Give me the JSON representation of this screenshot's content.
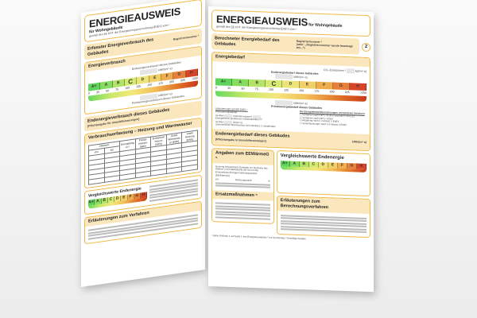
{
  "common": {
    "title": "ENERGIEAUSWEIS",
    "title_suffix": "für Wohngebäude",
    "legal": "gemäß den §§ 16 ff. der Energieeinsparverordnung (EnEV) vom ¹",
    "reg_label": "Registriernummer ²",
    "reg_note": "(oder: „Registriernummer wurde beantragt am...“)",
    "unit": "kWh/(m²·a)",
    "classes": [
      "A+",
      "A",
      "B",
      "C",
      "D",
      "E",
      "F",
      "G",
      "H"
    ],
    "ticks": [
      "0",
      "25",
      "50",
      "75",
      "100",
      "125",
      "150",
      "175",
      "200",
      "225",
      ">250"
    ],
    "current_class": "C",
    "class_colors": [
      "#5fd35a",
      "#86dc5e",
      "#b4e467",
      "#d4ea70",
      "#ece478",
      "#f2d068",
      "#f0ad4e",
      "#e7803a",
      "#d6452a"
    ]
  },
  "left": {
    "header": "Erfasster Energieverbrauch des Gebäudes",
    "section": "Energieverbrauch",
    "end_label": "Endenergieverbrauch dieses Gebäudes",
    "primary_label": "Primärenergieverbrauch dieses Gebäudes",
    "summary_title": "Endenergieverbrauch dieses Gebäudes",
    "summary_note": "[Pflichtangabe für Immobilienanzeigen]",
    "table_title": "Verbrauchserfassung – Heizung und Warmwasser",
    "table_headers": [
      "Zeitraum",
      "Energieträger ³",
      "Primär-energie-faktor",
      "Energieverbrauch [kWh]",
      "Anteil Warmwasser [kWh]",
      "Anteil Heizung [kWh]"
    ],
    "period_sub": [
      "von",
      "bis"
    ],
    "compare_title": "Vergleichswerte Endenergie",
    "expl_title": "Erläuterungen zum Verfahren"
  },
  "right": {
    "header": "Berechneter Energiebedarf des Gebäudes",
    "page_number": "2",
    "section": "Energiebedarf",
    "co2_label": "CO₂-Emissionen ³",
    "co2_unit": "kg/(m²·a)",
    "end_label": "Endenergiebedarf dieses Gebäudes",
    "primary_label": "Primärenergiebedarf dieses Gebäudes",
    "req_title": "Anforderungen gemäß EnEV ⁴",
    "req_primary": "Primärenergiebedarf",
    "ist": "Ist-Wert",
    "soll": "Anforderungswert",
    "hull": "Energetische Qualität der Gebäudehülle H'T",
    "hull_unit": "W/(m²·K)",
    "summer": "Sommerlicher Wärmeschutz (bei Neubau)",
    "summer_ok": "eingehalten",
    "method_title": "Für Energiebedarfsberechnungen verwendetes Verfahren",
    "methods": [
      "Verfahren nach DIN V 4108-6 und DIN V 4701-10",
      "Verfahren nach DIN V 18599",
      "Regelung nach § 3 Absatz 5 EnEV",
      "Vereinfachungen nach § 9 Absatz 2 EnEV"
    ],
    "summary_title": "Endenergiebedarf dieses Gebäudes",
    "summary_note": "[Pflichtangabe in Immobilienanzeigen]",
    "eew_title": "Angaben zum EEWärmeG ⁵",
    "eew_text": "Nutzung erneuerbarer Energien zur Deckung des Wärme- und Kältebedarfs auf Grund des Erneuerbare-Energien-Wärmegesetzes (EEWärmeG)",
    "eew_art": "Art:",
    "eew_share": "Deckungsanteil:",
    "percent": "%",
    "ersatz_title": "Ersatzmaßnahmen ⁶",
    "compare_title": "Vergleichswerte Endenergie",
    "expl_title": "Erläuterungen zum Berechnungsverfahren",
    "footnote": "¹ siehe Fußnote 1 auf Seite 1 des Energieausweises  ² nur bei Neubau  ³ freiwillige Angabe"
  }
}
